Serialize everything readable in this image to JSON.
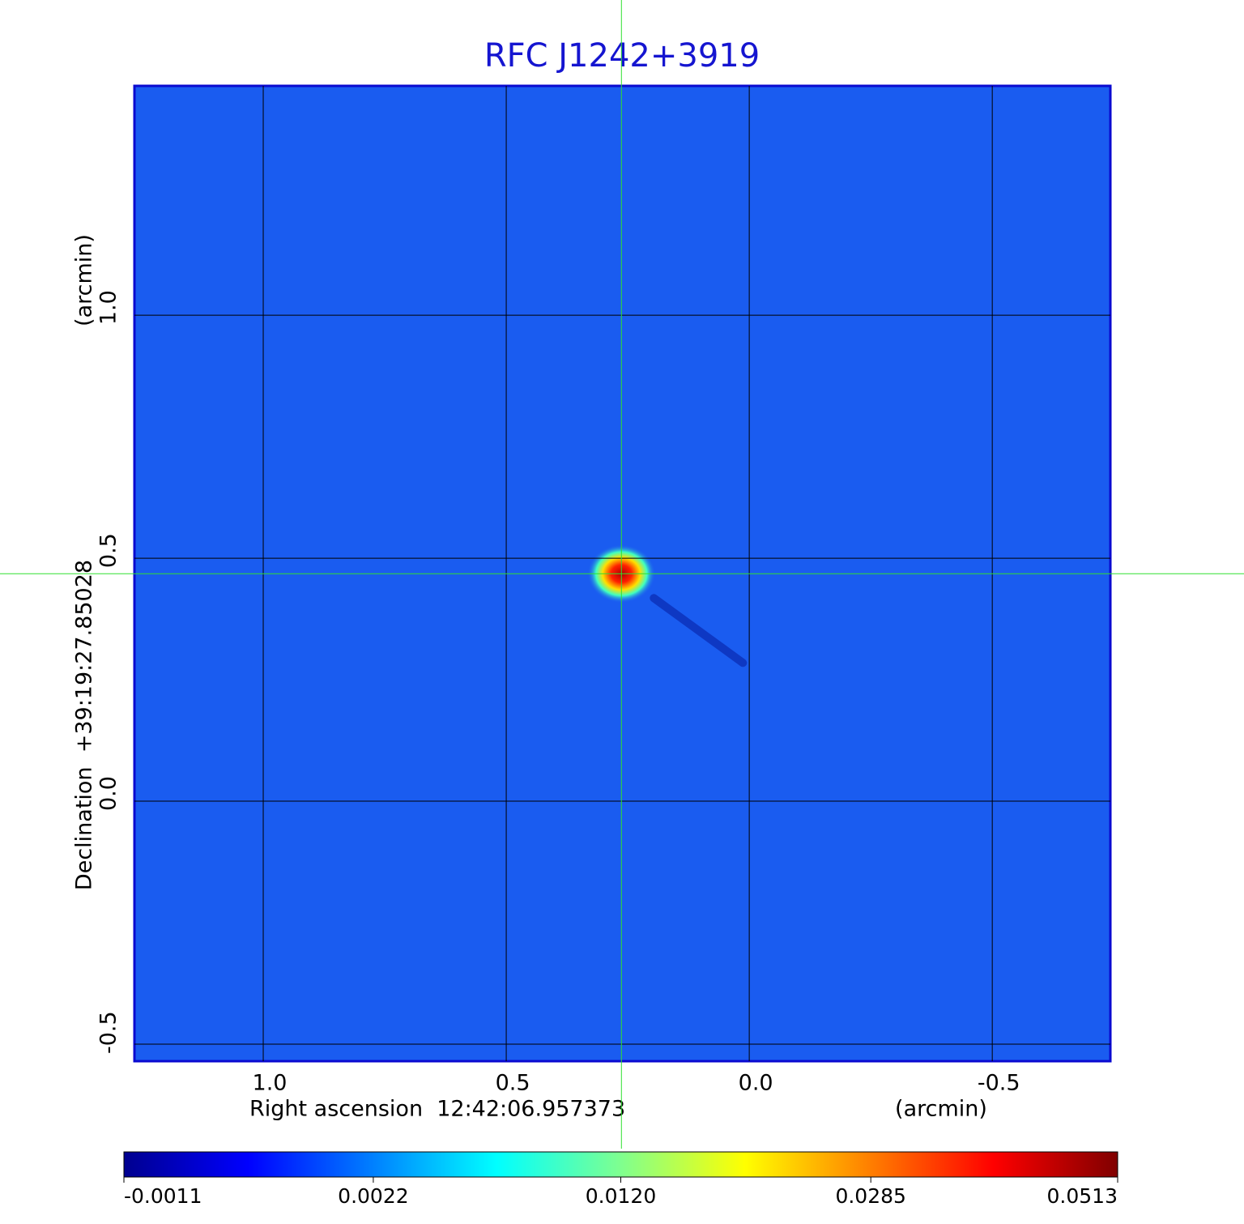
{
  "chart_data": {
    "type": "image",
    "title": "RFC J1242+3919",
    "xlabel": "Right ascension  12:42:06.957373",
    "xunit": "(arcmin)",
    "ylabel": "Declination  +39:19:27.85028",
    "yunit": "(arcmin)",
    "xlim": [
      1.265,
      -0.743
    ],
    "ylim": [
      -0.535,
      1.472
    ],
    "xticks": [
      {
        "value": 1,
        "label": "1.0"
      },
      0.5,
      {
        "value": 0,
        "label": "0.0"
      },
      -0.5
    ],
    "yticks": [
      {
        "value": -0.5,
        "label": "-0.5"
      },
      {
        "value": 0,
        "label": "0.0"
      },
      0.5,
      {
        "value": 1,
        "label": "1.0"
      }
    ],
    "grid": true,
    "source": {
      "x": 0.263,
      "y": 0.468
    },
    "colorbar": {
      "scale": "sqrt",
      "lim": [
        -0.0011,
        0.0513
      ],
      "ticks": [
        {
          "value": -0.0011,
          "label": "-0.0011"
        },
        {
          "value": 0.0022,
          "label": "0.0022"
        },
        {
          "value": 0.012,
          "label": "0.0120"
        },
        {
          "value": 0.0285,
          "label": "0.0285"
        },
        {
          "value": 0.0513,
          "label": "0.0513"
        }
      ]
    }
  }
}
